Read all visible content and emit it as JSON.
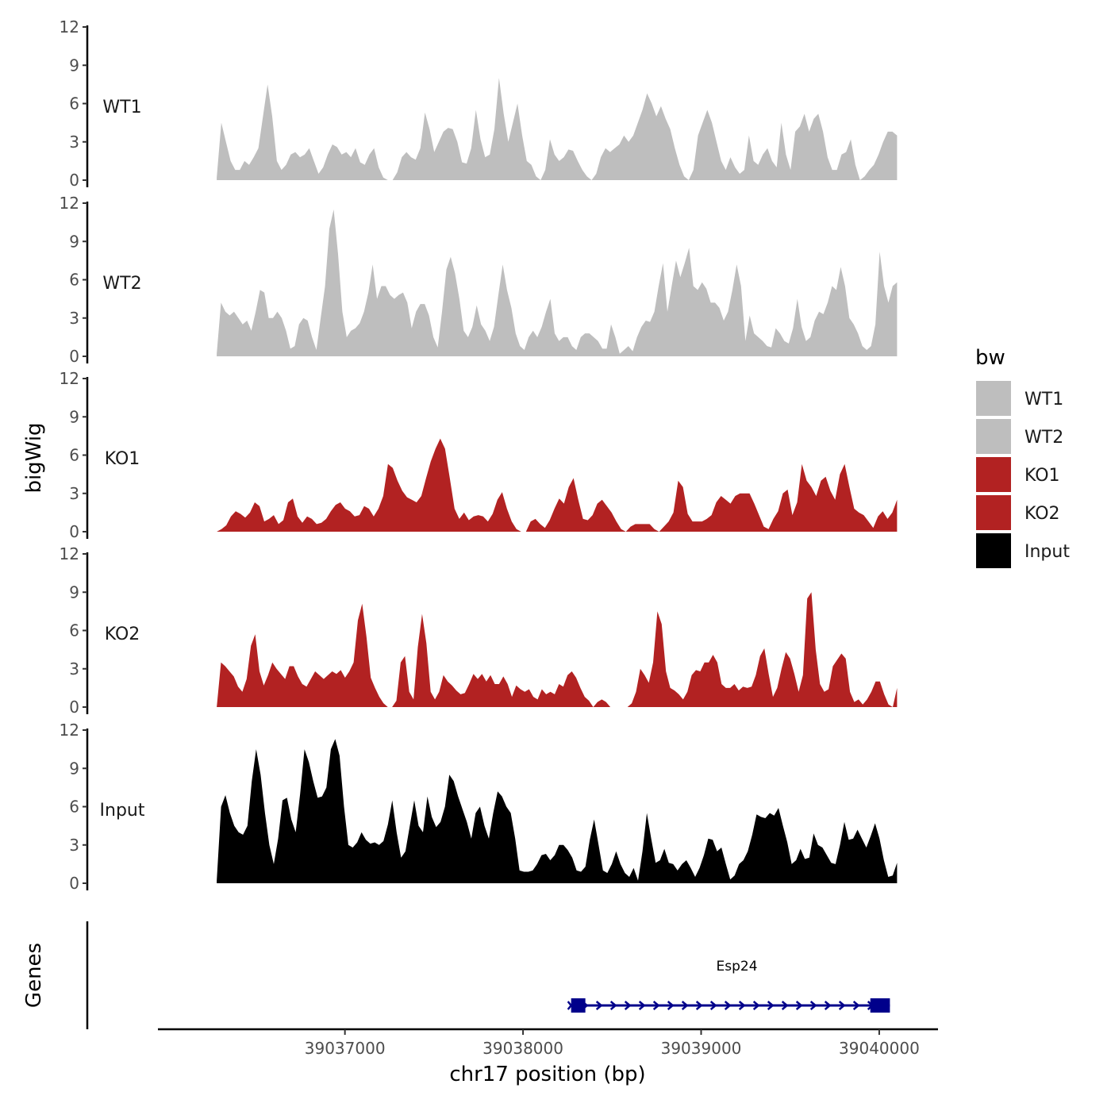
{
  "chart_data": {
    "type": "area",
    "ylabel": "bigWig",
    "xlabel": "chr17 position (bp)",
    "genes_label": "Genes",
    "x_range": [
      39036280,
      39040100
    ],
    "xlim": [
      39035950,
      39040330
    ],
    "x_ticks": [
      39037000,
      39038000,
      39039000,
      39040000
    ],
    "x_tick_labels": [
      "39037000",
      "39038000",
      "39039000",
      "39040000"
    ],
    "y_range": [
      0,
      12
    ],
    "y_ticks": [
      0,
      3,
      6,
      9,
      12
    ],
    "y_tick_labels": [
      "0",
      "3",
      "6",
      "9",
      "12"
    ],
    "legend": {
      "title": "bw",
      "items": [
        {
          "label": "WT1",
          "color": "#bebebe"
        },
        {
          "label": "WT2",
          "color": "#bebebe"
        },
        {
          "label": "KO1",
          "color": "#b22222"
        },
        {
          "label": "KO2",
          "color": "#b22222"
        },
        {
          "label": "Input",
          "color": "#000000"
        }
      ]
    },
    "tracks": [
      {
        "name": "WT1",
        "color": "#bebebe",
        "values": [
          0.2,
          4.5,
          3,
          1.5,
          0.8,
          0.8,
          1.5,
          1.2,
          1.8,
          2.5,
          5,
          7.5,
          5,
          1.5,
          0.8,
          1.2,
          2,
          2.2,
          1.8,
          2,
          2.5,
          1.5,
          0.5,
          1,
          2,
          2.8,
          2.6,
          2,
          2.2,
          1.8,
          2.5,
          1.4,
          1.2,
          2,
          2.5,
          1,
          0.2,
          0,
          0,
          0.6,
          1.8,
          2.2,
          1.8,
          1.6,
          2.5,
          5.3,
          4,
          2.2,
          3,
          3.8,
          4.1,
          4,
          3,
          1.4,
          1.3,
          2.5,
          5.5,
          3.2,
          1.8,
          2,
          4,
          8,
          5.2,
          3,
          4.5,
          6,
          3.5,
          1.5,
          1.2,
          0.3,
          0,
          0.8,
          3.2,
          2,
          1.5,
          1.8,
          2.4,
          2.3,
          1.5,
          0.8,
          0.3,
          0,
          0.5,
          1.8,
          2.5,
          2.2,
          2.5,
          2.8,
          3.5,
          3,
          3.5,
          4.5,
          5.5,
          6.8,
          6,
          5,
          5.8,
          4.8,
          4,
          2.5,
          1.2,
          0.3,
          0,
          0.8,
          3.5,
          4.5,
          5.5,
          4.5,
          3,
          1.5,
          0.8,
          1.8,
          1,
          0.5,
          0.8,
          3.5,
          1.5,
          1.2,
          2,
          2.5,
          1.5,
          1,
          4.5,
          2,
          0.8,
          3.8,
          4.2,
          5.2,
          3.8,
          4.8,
          5.2,
          3.8,
          1.8,
          0.8,
          0.8,
          2,
          2.2,
          3.2,
          1.2,
          0,
          0.3,
          0.8,
          1.2,
          2,
          3,
          3.8,
          3.8,
          3.5
        ]
      },
      {
        "name": "WT2",
        "color": "#bebebe",
        "values": [
          0.2,
          4.2,
          3.5,
          3.2,
          3.5,
          3,
          2.5,
          2.8,
          2,
          3.5,
          5.2,
          5,
          3,
          3,
          3.5,
          3,
          2,
          0.6,
          0.8,
          2.5,
          3,
          2.8,
          1.5,
          0.5,
          3,
          5.5,
          10,
          11.5,
          8,
          3.5,
          1.5,
          2,
          2.2,
          2.6,
          3.5,
          5,
          7.2,
          4.5,
          5.5,
          5.5,
          4.8,
          4.5,
          4.8,
          5,
          4.2,
          2.2,
          3.5,
          4.1,
          4.1,
          3.2,
          1.5,
          0.7,
          3.5,
          6.8,
          7.8,
          6.5,
          4.5,
          2,
          1.5,
          2.3,
          4,
          2.5,
          2,
          1.2,
          2.3,
          4.8,
          7.2,
          5.2,
          3.8,
          1.8,
          0.8,
          0.5,
          1.5,
          2,
          1.5,
          2.3,
          3.5,
          4.5,
          1.8,
          1.2,
          1.5,
          1.5,
          0.8,
          0.5,
          1.5,
          1.8,
          1.8,
          1.5,
          1.2,
          0.6,
          0.6,
          2.5,
          1.5,
          0.2,
          0.5,
          0.8,
          0.4,
          1.5,
          2.3,
          2.8,
          2.7,
          3.5,
          5.5,
          7.3,
          3.5,
          5.5,
          7.5,
          6.2,
          7.3,
          8.5,
          5.5,
          5.2,
          5.8,
          5.3,
          4.2,
          4.2,
          3.8,
          2.8,
          3.5,
          5.2,
          7.2,
          5.5,
          1.2,
          3.2,
          1.8,
          1.5,
          1.2,
          0.8,
          0.7,
          2.2,
          1.8,
          1.2,
          1,
          2.2,
          4.5,
          2.3,
          1.2,
          1.5,
          2.8,
          3.5,
          3.3,
          4.2,
          5.5,
          5.2,
          7,
          5.5,
          3,
          2.5,
          1.8,
          0.8,
          0.5,
          0.8,
          2.5,
          8.2,
          5.5,
          4.2,
          5.5,
          5.8
        ]
      },
      {
        "name": "KO1",
        "color": "#b22222",
        "values": [
          0,
          0.2,
          0.5,
          1.2,
          1.6,
          1.4,
          1.1,
          1.5,
          2.3,
          2,
          0.8,
          1,
          1.3,
          0.6,
          0.9,
          2.3,
          2.6,
          1.2,
          0.7,
          1.2,
          1,
          0.6,
          0.7,
          1,
          1.6,
          2.1,
          2.3,
          1.8,
          1.6,
          1.2,
          1.3,
          2,
          1.8,
          1.2,
          1.8,
          2.8,
          5.3,
          5,
          4,
          3.2,
          2.7,
          2.5,
          2.3,
          2.8,
          4.2,
          5.5,
          6.5,
          7.3,
          6.5,
          4.2,
          1.8,
          1,
          1.5,
          0.9,
          1.2,
          1.3,
          1.2,
          0.8,
          1.4,
          2.5,
          3.1,
          1.8,
          0.8,
          0.2,
          0,
          0,
          0.8,
          1,
          0.6,
          0.3,
          0.9,
          1.8,
          2.6,
          2.2,
          3.5,
          4.2,
          2.5,
          1,
          0.9,
          1.3,
          2.2,
          2.5,
          2,
          1.5,
          0.8,
          0.2,
          0,
          0.4,
          0.6,
          0.6,
          0.6,
          0.6,
          0.2,
          0,
          0.4,
          0.8,
          1.5,
          4,
          3.5,
          1.4,
          0.8,
          0.8,
          0.8,
          1,
          1.3,
          2.3,
          2.8,
          2.5,
          2.2,
          2.8,
          3,
          3,
          3,
          2.2,
          1.3,
          0.4,
          0.2,
          1,
          1.6,
          3,
          3.3,
          1.3,
          2.3,
          5.3,
          4,
          3.5,
          2.8,
          4,
          4.3,
          3.2,
          2.5,
          4.5,
          5.3,
          3.5,
          1.8,
          1.5,
          1.3,
          0.8,
          0.3,
          1.2,
          1.6,
          1,
          1.5,
          2.5
        ]
      },
      {
        "name": "KO2",
        "color": "#b22222",
        "values": [
          0,
          3.5,
          3.2,
          2.8,
          2.4,
          1.6,
          1.2,
          2.2,
          4.8,
          5.7,
          2.8,
          1.7,
          2.5,
          3.5,
          3,
          2.6,
          2.2,
          3.2,
          3.2,
          2.4,
          1.8,
          1.6,
          2.2,
          2.8,
          2.5,
          2.2,
          2.5,
          2.8,
          2.6,
          2.9,
          2.3,
          2.8,
          3.5,
          6.8,
          8.1,
          5.5,
          2.3,
          1.5,
          0.8,
          0.3,
          0,
          0,
          0.5,
          3.5,
          4,
          1.2,
          0.6,
          4.7,
          7.3,
          5,
          1.2,
          0.6,
          1.2,
          2.5,
          2,
          1.7,
          1.3,
          1,
          1.1,
          1.8,
          2.6,
          2.2,
          2.6,
          2,
          2.5,
          1.8,
          1.8,
          2.4,
          1.8,
          0.8,
          1.7,
          1.4,
          1.2,
          1.4,
          0.8,
          0.6,
          1.4,
          1,
          1.2,
          1,
          1.8,
          1.6,
          2.5,
          2.8,
          2.3,
          1.5,
          0.8,
          0.5,
          0,
          0.4,
          0.6,
          0.4,
          0,
          0,
          0,
          0,
          0,
          0.3,
          1.2,
          3,
          2.5,
          1.9,
          3.5,
          7.5,
          6.5,
          2.8,
          1.5,
          1.3,
          1,
          0.6,
          1.2,
          2.5,
          2.9,
          2.8,
          3.5,
          3.5,
          4.1,
          3.5,
          1.8,
          1.5,
          1.5,
          1.8,
          1.3,
          1.6,
          1.5,
          1.6,
          2.5,
          4,
          4.6,
          2.6,
          0.8,
          1.5,
          3,
          4.3,
          3.8,
          2.6,
          1.2,
          2.5,
          8.5,
          9,
          4.5,
          1.8,
          1.2,
          1.4,
          3.2,
          3.7,
          4.2,
          3.8,
          1.2,
          0.4,
          0.6,
          0.2,
          0.6,
          1.2,
          2,
          2,
          1,
          0.2,
          0,
          1.5
        ]
      },
      {
        "name": "Input",
        "color": "#000000",
        "values": [
          0.2,
          6,
          6.9,
          5.5,
          4.5,
          4,
          3.8,
          4.5,
          8,
          10.5,
          8.5,
          5.5,
          3,
          1.5,
          3.5,
          6.5,
          6.7,
          5,
          4,
          7,
          10.5,
          9.5,
          8,
          6.7,
          6.8,
          7.5,
          10.5,
          11.3,
          10,
          6,
          3,
          2.8,
          3.2,
          4,
          3.4,
          3.1,
          3.2,
          3,
          3.3,
          4.6,
          6.5,
          4,
          2,
          2.5,
          4.5,
          6.5,
          4.5,
          4,
          6.8,
          5.2,
          4.4,
          4.8,
          6,
          8.5,
          8,
          6.8,
          5.8,
          4.8,
          3.5,
          5.5,
          6,
          4.5,
          3.5,
          5.5,
          7.2,
          6.8,
          6,
          5.5,
          3.5,
          1,
          0.9,
          0.9,
          1,
          1.5,
          2.2,
          2.3,
          1.8,
          2.2,
          3,
          3,
          2.6,
          2,
          1,
          0.9,
          1.3,
          3.4,
          5,
          3,
          1,
          0.8,
          1.5,
          2.5,
          1.5,
          0.8,
          0.5,
          1.2,
          0.2,
          2.5,
          5.5,
          3.5,
          1.6,
          1.8,
          2.7,
          1.6,
          1.5,
          1,
          1.5,
          1.8,
          1.2,
          0.5,
          1.2,
          2.2,
          3.5,
          3.4,
          2.5,
          2.8,
          1.5,
          0.3,
          0.6,
          1.5,
          1.8,
          2.5,
          3.8,
          5.4,
          5.2,
          5.1,
          5.5,
          5.3,
          5.9,
          4.5,
          3.2,
          1.5,
          1.8,
          2.7,
          1.9,
          2,
          3.9,
          3,
          2.8,
          2.2,
          1.6,
          1.5,
          3,
          4.8,
          3.4,
          3.5,
          4.2,
          3.5,
          2.8,
          3.7,
          4.7,
          3.5,
          1.8,
          0.5,
          0.6,
          1.6
        ]
      }
    ],
    "genes": [
      {
        "name": "Esp24",
        "start": 39038270,
        "end": 39040060,
        "strand": "+",
        "color": "#00008b",
        "exons": [
          [
            39038270,
            39038350
          ],
          [
            39039950,
            39040060
          ]
        ]
      }
    ]
  }
}
